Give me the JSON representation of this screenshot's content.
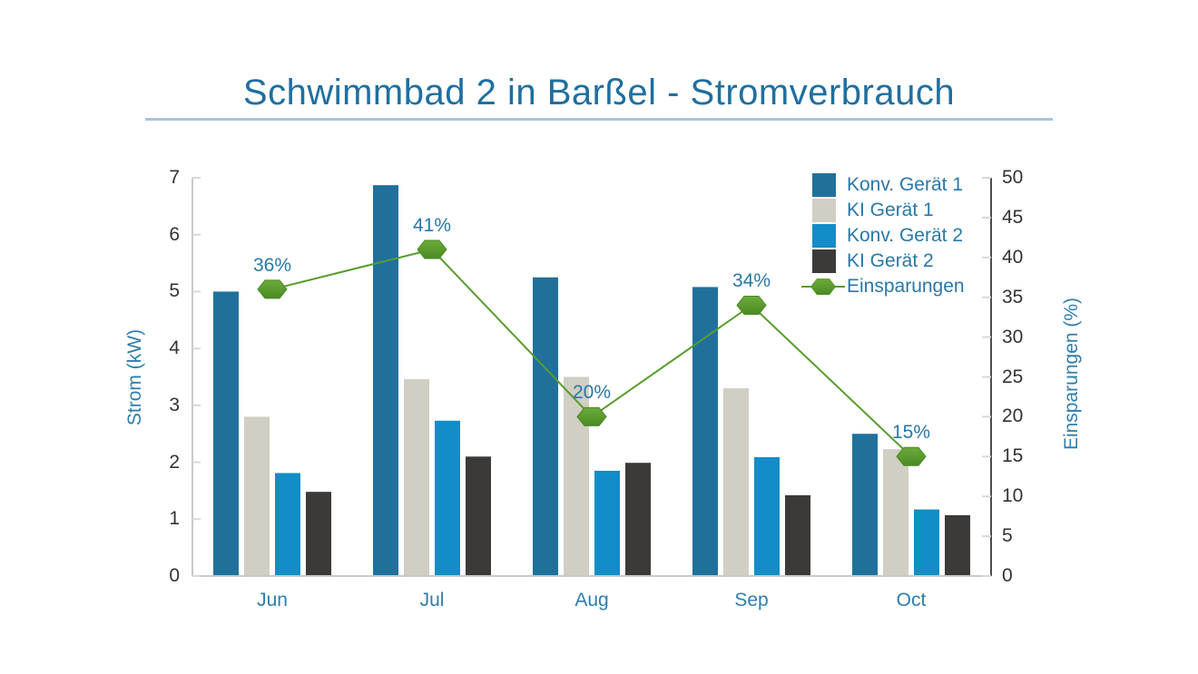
{
  "title": "Schwimmbad 2 in Barßel - Stromverbrauch",
  "chart_data": {
    "type": "bar+line combo",
    "categories": [
      "Jun",
      "Jul",
      "Aug",
      "Sep",
      "Oct"
    ],
    "series": [
      {
        "name": "Konv. Gerät 1",
        "type": "bar",
        "axis": "left",
        "color": "#21709c",
        "values": [
          5.0,
          6.87,
          5.25,
          5.08,
          2.5
        ]
      },
      {
        "name": "KI Gerät 1",
        "type": "bar",
        "axis": "left",
        "color": "#d1cec3",
        "values": [
          2.8,
          3.46,
          3.5,
          3.3,
          2.23
        ]
      },
      {
        "name": "Konv. Gerät 2",
        "type": "bar",
        "axis": "left",
        "color": "#128dc7",
        "values": [
          1.81,
          2.73,
          1.85,
          2.09,
          1.17
        ]
      },
      {
        "name": "KI Gerät 2",
        "type": "bar",
        "axis": "left",
        "color": "#3b3a38",
        "values": [
          1.48,
          2.1,
          1.99,
          1.42,
          1.07
        ]
      },
      {
        "name": "Einsparungen",
        "type": "line",
        "axis": "right",
        "color": "#579c2d",
        "marker": "hexagon",
        "values": [
          36,
          41,
          20,
          34,
          15
        ],
        "point_labels": [
          "36%",
          "41%",
          "20%",
          "34%",
          "15%"
        ]
      }
    ],
    "left_axis": {
      "label": "Strom (kW)",
      "min": 0,
      "max": 7,
      "tick_step": 1,
      "ticks": [
        0,
        1,
        2,
        3,
        4,
        5,
        6,
        7
      ]
    },
    "right_axis": {
      "label": "Einsparungen (%)",
      "min": 0,
      "max": 50,
      "tick_step": 5,
      "ticks": [
        0,
        5,
        10,
        15,
        20,
        25,
        30,
        35,
        40,
        45,
        50
      ]
    },
    "legend": {
      "position": "top-right-inside",
      "items": [
        "Konv. Gerät 1",
        "KI Gerät 1",
        "Konv. Gerät 2",
        "KI Gerät 2",
        "Einsparungen"
      ]
    },
    "grid": false
  },
  "colors": {
    "background": "#ffffff",
    "title": "#1f6f9f",
    "divider": "#aac4d6",
    "axis_label": "#2e7dac",
    "category_label": "#2e7dac",
    "data_label": "#2878a8",
    "legend_text": "#2878a8",
    "tick_text": "#333333",
    "left_spine": "#c9c9c9",
    "bottom_spine": "#c9c9c9",
    "right_spine": "#4d4d4d",
    "tick_mark": "#d8d8d8",
    "line_green": "#579c2d",
    "marker_light": "#6cab3a",
    "marker_dark": "#4a8a24"
  }
}
